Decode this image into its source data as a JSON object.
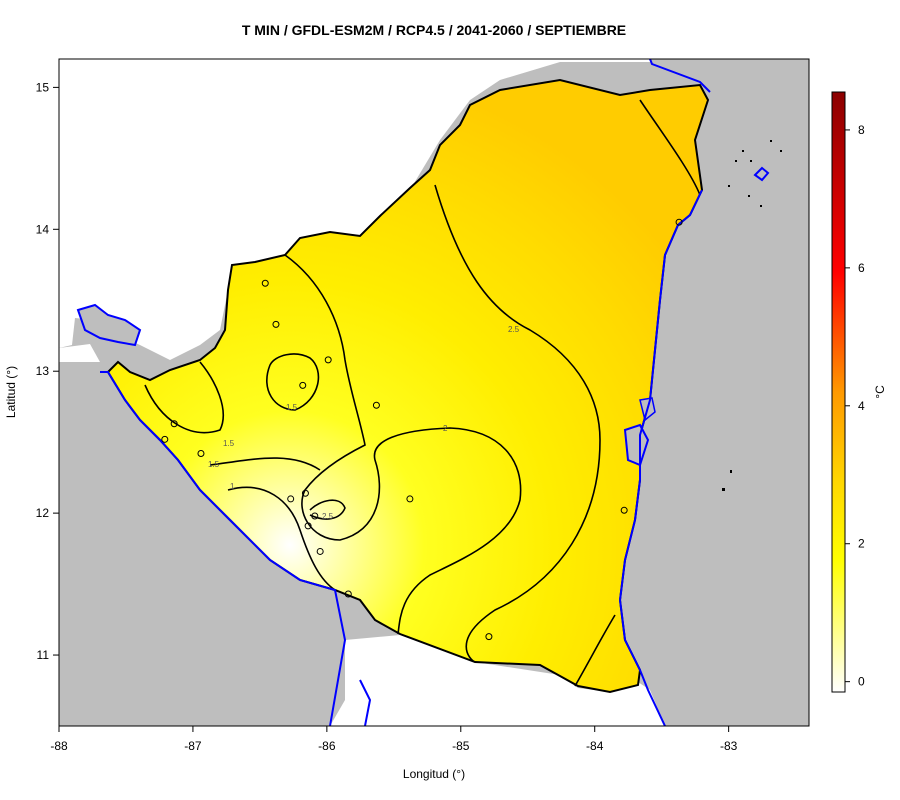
{
  "title": "T MIN / GFDL-ESM2M / RCP4.5 / 2041-2060 / SEPTIEMBRE",
  "xlabel": "Longitud (°)",
  "ylabel": "Latitud (°)",
  "x_ticks": [
    "-88",
    "-87",
    "-86",
    "-85",
    "-84",
    "-83"
  ],
  "y_ticks": [
    "11",
    "12",
    "13",
    "14",
    "15"
  ],
  "colorbar": {
    "unit": "°C",
    "ticks": [
      "0",
      "2",
      "4",
      "6",
      "8"
    ],
    "range": [
      -0.15,
      8.55
    ],
    "colors": [
      "#ffffff",
      "#ffff00",
      "#ffd700",
      "#ff9900",
      "#ff0000",
      "#8b0000"
    ]
  },
  "contour_labels": [
    "1",
    "1.5",
    "1.5",
    "1.5",
    "2",
    "2.5",
    "2.5"
  ],
  "colors": {
    "sea": "#bebebe",
    "coast": "#0000ff",
    "border": "#000000"
  },
  "chart_data": {
    "type": "heatmap",
    "title": "T MIN / GFDL-ESM2M / RCP4.5 / 2041-2060 / SEPTIEMBRE",
    "xlabel": "Longitud (°)",
    "ylabel": "Latitud (°)",
    "xlim": [
      -88,
      -82.4
    ],
    "ylim": [
      10.5,
      15.2
    ],
    "unit": "°C",
    "contour_levels": [
      1,
      1.5,
      2,
      2.5
    ],
    "stations": [
      {
        "lon": -86.46,
        "lat": 13.62
      },
      {
        "lon": -86.38,
        "lat": 13.33
      },
      {
        "lon": -85.99,
        "lat": 13.08
      },
      {
        "lon": -86.18,
        "lat": 12.9
      },
      {
        "lon": -85.63,
        "lat": 12.76
      },
      {
        "lon": -87.14,
        "lat": 12.63
      },
      {
        "lon": -87.21,
        "lat": 12.52
      },
      {
        "lon": -86.94,
        "lat": 12.42
      },
      {
        "lon": -86.27,
        "lat": 12.1
      },
      {
        "lon": -86.16,
        "lat": 12.14
      },
      {
        "lon": -85.38,
        "lat": 12.1
      },
      {
        "lon": -86.09,
        "lat": 11.98
      },
      {
        "lon": -86.14,
        "lat": 11.91
      },
      {
        "lon": -86.05,
        "lat": 11.73
      },
      {
        "lon": -85.84,
        "lat": 11.43
      },
      {
        "lon": -84.79,
        "lat": 11.13
      },
      {
        "lon": -83.78,
        "lat": 12.02
      },
      {
        "lon": -83.37,
        "lat": 14.05
      }
    ]
  }
}
